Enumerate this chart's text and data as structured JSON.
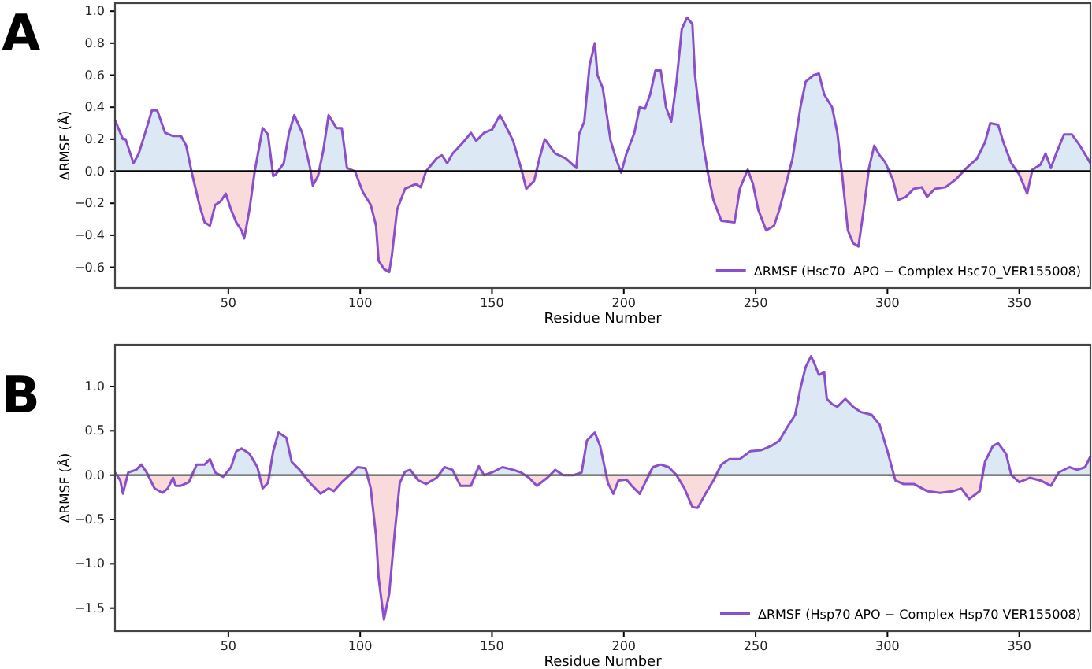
{
  "chart_data": [
    {
      "type": "line",
      "title": "A",
      "xlabel": "Residue Number",
      "ylabel": "ΔRMSF (Å)",
      "xlim": [
        7,
        377
      ],
      "xticks": [
        50,
        100,
        150,
        200,
        250,
        300,
        350
      ],
      "ylim": [
        -0.73,
        1.05
      ],
      "yticks": [
        {
          "value": -0.6,
          "label": "−0.6"
        },
        {
          "value": -0.4,
          "label": "−0.4"
        },
        {
          "value": -0.2,
          "label": "−0.2"
        },
        {
          "value": 0,
          "label": "0.0"
        },
        {
          "value": 0.2,
          "label": "0.2"
        },
        {
          "value": 0.4,
          "label": "0.4"
        },
        {
          "value": 0.6,
          "label": "0.6"
        },
        {
          "value": 0.8,
          "label": "0.8"
        },
        {
          "value": 1,
          "label": "1.0"
        }
      ],
      "legend": "bottom right",
      "grid": false,
      "x": [
        7,
        10,
        11,
        14,
        16,
        19,
        21,
        23,
        26,
        29,
        32,
        34,
        36,
        39,
        41,
        43,
        45,
        47,
        49,
        51,
        53,
        55,
        56,
        58,
        60,
        63,
        65,
        67,
        68,
        71,
        73,
        75,
        78,
        81,
        82,
        84,
        86,
        88,
        91,
        93,
        95,
        98,
        101,
        104,
        106,
        107,
        109,
        111,
        112,
        114,
        117,
        121,
        123,
        125,
        129,
        131,
        133,
        135,
        139,
        142,
        144,
        147,
        150,
        153,
        155,
        158,
        161,
        163,
        166,
        168,
        170,
        174,
        178,
        182,
        183,
        185,
        187,
        189,
        190,
        192,
        195,
        197,
        199,
        201,
        204,
        206,
        208,
        210,
        212,
        214,
        216,
        218,
        220,
        222,
        224,
        226,
        227,
        230,
        232,
        234,
        237,
        242,
        244,
        247,
        249,
        251,
        254,
        257,
        259,
        262,
        264,
        267,
        269,
        272,
        274,
        276,
        279,
        281,
        283,
        285,
        287,
        289,
        291,
        293,
        295,
        297,
        299,
        302,
        304,
        307,
        310,
        313,
        315,
        318,
        322,
        326,
        330,
        334,
        337,
        339,
        342,
        344,
        347,
        350,
        353,
        355,
        358,
        360,
        362,
        364,
        367,
        370,
        373,
        377
      ],
      "ref_lines": [
        {
          "axis": "y",
          "value": 0,
          "color": "#000000"
        }
      ],
      "series": [
        {
          "type": "area",
          "color": "#dce9f4",
          "values": [
            0.32,
            0.2,
            0.2,
            0.05,
            0.11,
            0.27,
            0.38,
            0.38,
            0.24,
            0.22,
            0.22,
            0.16,
            0,
            0,
            0,
            0,
            0,
            0,
            0,
            0,
            0,
            0,
            0,
            0,
            0,
            0.27,
            0.23,
            0,
            0,
            0.05,
            0.24,
            0.35,
            0.24,
            0.02,
            0,
            0,
            0.13,
            0.35,
            0.27,
            0.27,
            0.02,
            0,
            0,
            0,
            0,
            0,
            0,
            0,
            0,
            0,
            0,
            0,
            0,
            0,
            0.08,
            0.1,
            0.05,
            0.11,
            0.18,
            0.24,
            0.19,
            0.24,
            0.26,
            0.35,
            0.29,
            0.19,
            0.02,
            0,
            0,
            0.08,
            0.2,
            0.11,
            0.08,
            0.02,
            0.23,
            0.31,
            0.66,
            0.8,
            0.6,
            0.52,
            0.19,
            0.08,
            0,
            0.11,
            0.24,
            0.4,
            0.39,
            0.48,
            0.63,
            0.63,
            0.4,
            0.31,
            0.56,
            0.89,
            0.96,
            0.92,
            0.6,
            0.18,
            0,
            0,
            0,
            0,
            0,
            0.01,
            0,
            0,
            0,
            0,
            0,
            0,
            0.08,
            0.4,
            0.56,
            0.6,
            0.61,
            0.48,
            0.4,
            0.24,
            0,
            0,
            0,
            0,
            0,
            0.02,
            0.16,
            0.1,
            0.06,
            0,
            0,
            0,
            0,
            0,
            0,
            0,
            0,
            0,
            0.02,
            0.08,
            0.18,
            0.3,
            0.29,
            0.18,
            0.05,
            0,
            0,
            0.01,
            0.04,
            0.11,
            0.02,
            0.11,
            0.23,
            0.23,
            0.16,
            0.05
          ]
        },
        {
          "type": "area",
          "color": "#f9dbdc",
          "values": [
            0,
            0,
            0,
            0,
            0,
            0,
            0,
            0,
            0,
            0,
            0,
            0,
            0,
            -0.21,
            -0.32,
            -0.34,
            -0.21,
            -0.19,
            -0.14,
            -0.24,
            -0.32,
            -0.37,
            -0.42,
            -0.24,
            0,
            0,
            0,
            -0.03,
            -0.02,
            0,
            0,
            0,
            0,
            0,
            -0.09,
            -0.03,
            0,
            0,
            0,
            0,
            0,
            0,
            -0.13,
            -0.21,
            -0.34,
            -0.56,
            -0.61,
            -0.63,
            -0.53,
            -0.24,
            -0.11,
            -0.08,
            -0.1,
            0,
            0,
            0,
            0,
            0,
            0,
            0,
            0,
            0,
            0,
            0,
            0,
            0,
            0,
            -0.11,
            -0.06,
            0,
            0,
            0,
            0,
            0,
            0,
            0,
            0,
            0,
            0,
            0,
            0,
            0,
            -0.01,
            0,
            0,
            0,
            0,
            0,
            0,
            0,
            0,
            0,
            0,
            0,
            0,
            0,
            0,
            0,
            -0.02,
            -0.18,
            -0.31,
            -0.32,
            -0.11,
            0,
            -0.08,
            -0.24,
            -0.37,
            -0.34,
            -0.24,
            -0.05,
            0,
            0,
            0,
            0,
            0,
            0,
            0,
            0,
            -0.05,
            -0.37,
            -0.45,
            -0.47,
            -0.24,
            0,
            0,
            0,
            0,
            -0.05,
            -0.18,
            -0.16,
            -0.11,
            -0.1,
            -0.16,
            -0.11,
            -0.1,
            -0.05,
            0,
            0,
            0,
            0,
            0,
            0,
            0,
            -0.02,
            -0.14,
            0,
            0,
            0,
            0,
            0,
            0,
            0,
            0,
            0
          ]
        },
        {
          "name": "ΔRMSF (Hsc70  APO − Complex Hsc70_VER155008)",
          "color": "#8a4fc9",
          "values": [
            0.32,
            0.2,
            0.2,
            0.05,
            0.11,
            0.27,
            0.38,
            0.38,
            0.24,
            0.22,
            0.22,
            0.16,
            0,
            -0.21,
            -0.32,
            -0.34,
            -0.21,
            -0.19,
            -0.14,
            -0.24,
            -0.32,
            -0.37,
            -0.42,
            -0.24,
            0,
            0.27,
            0.23,
            -0.03,
            -0.02,
            0.05,
            0.24,
            0.35,
            0.24,
            0.02,
            -0.09,
            -0.03,
            0.13,
            0.35,
            0.27,
            0.27,
            0.02,
            0,
            -0.13,
            -0.21,
            -0.34,
            -0.56,
            -0.61,
            -0.63,
            -0.53,
            -0.24,
            -0.11,
            -0.08,
            -0.1,
            0,
            0.08,
            0.1,
            0.05,
            0.11,
            0.18,
            0.24,
            0.19,
            0.24,
            0.26,
            0.35,
            0.29,
            0.19,
            0.02,
            -0.11,
            -0.06,
            0.08,
            0.2,
            0.11,
            0.08,
            0.02,
            0.23,
            0.31,
            0.66,
            0.8,
            0.6,
            0.52,
            0.19,
            0.08,
            -0.01,
            0.11,
            0.24,
            0.4,
            0.39,
            0.48,
            0.63,
            0.63,
            0.4,
            0.31,
            0.56,
            0.89,
            0.96,
            0.92,
            0.6,
            0.18,
            -0.02,
            -0.18,
            -0.31,
            -0.32,
            -0.11,
            0.01,
            -0.08,
            -0.24,
            -0.37,
            -0.34,
            -0.24,
            -0.05,
            0.08,
            0.4,
            0.56,
            0.6,
            0.61,
            0.48,
            0.4,
            0.24,
            -0.05,
            -0.37,
            -0.45,
            -0.47,
            -0.24,
            0.02,
            0.16,
            0.1,
            0.06,
            -0.05,
            -0.18,
            -0.16,
            -0.11,
            -0.1,
            -0.16,
            -0.11,
            -0.1,
            -0.05,
            0.02,
            0.08,
            0.18,
            0.3,
            0.29,
            0.18,
            0.05,
            -0.02,
            -0.14,
            0.01,
            0.04,
            0.11,
            0.02,
            0.11,
            0.23,
            0.23,
            0.16,
            0.05
          ]
        }
      ]
    },
    {
      "type": "line",
      "title": "B",
      "xlabel": "Residue Number",
      "ylabel": "ΔRMSF (Å)",
      "xlim": [
        7,
        377
      ],
      "xticks": [
        50,
        100,
        150,
        200,
        250,
        300,
        350
      ],
      "ylim": [
        -1.76,
        1.47
      ],
      "yticks": [
        {
          "value": -1.5,
          "label": "−1.5"
        },
        {
          "value": -1,
          "label": "−1.0"
        },
        {
          "value": -0.5,
          "label": "−0.5"
        },
        {
          "value": 0,
          "label": "0.0"
        },
        {
          "value": 0.5,
          "label": "0.5"
        },
        {
          "value": 1,
          "label": "1.0"
        }
      ],
      "legend": "bottom right",
      "grid": false,
      "x": [
        7,
        9,
        10,
        12,
        15,
        17,
        19,
        22,
        25,
        27,
        29,
        30,
        32,
        35,
        38,
        41,
        43,
        45,
        48,
        51,
        53,
        55,
        58,
        61,
        63,
        65,
        67,
        69,
        72,
        74,
        77,
        81,
        85,
        88,
        90,
        93,
        96,
        99,
        102,
        104,
        106,
        107,
        109,
        111,
        113,
        115,
        117,
        119,
        122,
        125,
        129,
        132,
        135,
        138,
        142,
        145,
        147,
        150,
        154,
        158,
        161,
        164,
        167,
        171,
        174,
        177,
        181,
        184,
        186,
        189,
        191,
        194,
        196,
        198,
        201,
        203,
        206,
        208,
        211,
        214,
        217,
        220,
        223,
        226,
        228,
        231,
        234,
        237,
        240,
        244,
        248,
        252,
        256,
        259,
        262,
        265,
        267,
        269,
        271,
        272,
        274,
        276,
        277,
        279,
        281,
        284,
        287,
        290,
        294,
        297,
        300,
        303,
        306,
        310,
        315,
        320,
        325,
        328,
        331,
        335,
        337,
        340,
        342,
        345,
        347,
        350,
        354,
        358,
        362,
        365,
        369,
        372,
        375,
        377
      ],
      "ref_lines": [
        {
          "axis": "y",
          "value": 0,
          "color": "#555555"
        }
      ],
      "series": [
        {
          "type": "area",
          "color": "#dce9f4",
          "values": [
            0.03,
            0,
            0,
            0.03,
            0.06,
            0.12,
            0.03,
            0,
            0,
            0,
            0,
            0,
            0,
            0,
            0.12,
            0.12,
            0.18,
            0.03,
            0,
            0.09,
            0.27,
            0.3,
            0.24,
            0.09,
            0,
            0,
            0.27,
            0.48,
            0.42,
            0.15,
            0.06,
            0,
            0,
            0,
            0,
            0,
            0,
            0.09,
            0.08,
            0,
            0,
            0,
            0,
            0,
            0,
            0,
            0.04,
            0.06,
            0,
            0,
            0,
            0.09,
            0.06,
            0,
            0,
            0.1,
            0,
            0.03,
            0.09,
            0.06,
            0.03,
            0,
            0,
            0,
            0.06,
            0,
            0,
            0.03,
            0.39,
            0.48,
            0.33,
            0,
            0,
            0,
            0,
            0,
            0,
            0,
            0.09,
            0.12,
            0.09,
            0,
            0,
            0,
            0,
            0,
            0,
            0.12,
            0.18,
            0.18,
            0.27,
            0.28,
            0.33,
            0.39,
            0.54,
            0.68,
            0.98,
            1.22,
            1.34,
            1.28,
            1.13,
            1.16,
            0.86,
            0.8,
            0.77,
            0.86,
            0.77,
            0.71,
            0.68,
            0.57,
            0.27,
            0,
            0,
            0,
            0,
            0,
            0,
            0,
            0,
            0,
            0.15,
            0.33,
            0.36,
            0.24,
            0,
            0,
            0,
            0,
            0,
            0.03,
            0.09,
            0.06,
            0.09,
            0.21
          ]
        },
        {
          "type": "area",
          "color": "#f9dbdc",
          "values": [
            0,
            -0.06,
            -0.21,
            0,
            0,
            0,
            0,
            -0.15,
            -0.2,
            -0.15,
            -0.03,
            -0.12,
            -0.12,
            -0.08,
            0,
            0,
            0,
            0,
            -0.02,
            0,
            0,
            0,
            0,
            0,
            -0.15,
            -0.09,
            0,
            0,
            0,
            0,
            0,
            -0.09,
            -0.21,
            -0.15,
            -0.18,
            -0.08,
            0,
            0,
            0,
            -0.15,
            -0.68,
            -1.16,
            -1.63,
            -1.34,
            -0.68,
            -0.09,
            0,
            0,
            -0.06,
            -0.1,
            -0.03,
            0,
            0,
            -0.12,
            -0.12,
            0,
            0,
            0,
            0,
            0,
            0,
            -0.03,
            -0.12,
            -0.03,
            0,
            0,
            0,
            0,
            0,
            0,
            0,
            -0.09,
            -0.21,
            -0.06,
            -0.05,
            -0.12,
            -0.21,
            -0.09,
            0,
            0,
            0,
            0,
            -0.15,
            -0.36,
            -0.37,
            -0.21,
            -0.06,
            0,
            0,
            0,
            0,
            0,
            0,
            0,
            0,
            0,
            0,
            0,
            0,
            0,
            0,
            0,
            0,
            0,
            0,
            0,
            0,
            0,
            0,
            0,
            0,
            -0.06,
            -0.1,
            -0.1,
            -0.18,
            -0.2,
            -0.18,
            -0.15,
            -0.27,
            -0.18,
            0,
            0,
            0,
            0,
            0,
            -0.08,
            -0.03,
            -0.06,
            -0.12,
            0,
            0,
            0,
            0,
            0
          ]
        },
        {
          "name": "ΔRMSF (Hsp70 APO − Complex Hsp70 VER155008)",
          "color": "#8a4fc9",
          "values": [
            0.03,
            -0.06,
            -0.21,
            0.03,
            0.06,
            0.12,
            0.03,
            -0.15,
            -0.2,
            -0.15,
            -0.03,
            -0.12,
            -0.12,
            -0.08,
            0.12,
            0.12,
            0.18,
            0.03,
            -0.02,
            0.09,
            0.27,
            0.3,
            0.24,
            0.09,
            -0.15,
            -0.09,
            0.27,
            0.48,
            0.42,
            0.15,
            0.06,
            -0.09,
            -0.21,
            -0.15,
            -0.18,
            -0.08,
            0,
            0.09,
            0.08,
            -0.15,
            -0.68,
            -1.16,
            -1.63,
            -1.34,
            -0.68,
            -0.09,
            0.04,
            0.06,
            -0.06,
            -0.1,
            -0.03,
            0.09,
            0.06,
            -0.12,
            -0.12,
            0.1,
            0,
            0.03,
            0.09,
            0.06,
            0.03,
            -0.03,
            -0.12,
            -0.03,
            0.06,
            0,
            0,
            0.03,
            0.39,
            0.48,
            0.33,
            -0.09,
            -0.21,
            -0.06,
            -0.05,
            -0.12,
            -0.21,
            -0.09,
            0.09,
            0.12,
            0.09,
            0,
            -0.15,
            -0.36,
            -0.37,
            -0.21,
            -0.06,
            0.12,
            0.18,
            0.18,
            0.27,
            0.28,
            0.33,
            0.39,
            0.54,
            0.68,
            0.98,
            1.22,
            1.34,
            1.28,
            1.13,
            1.16,
            0.86,
            0.8,
            0.77,
            0.86,
            0.77,
            0.71,
            0.68,
            0.57,
            0.27,
            -0.06,
            -0.1,
            -0.1,
            -0.18,
            -0.2,
            -0.18,
            -0.15,
            -0.27,
            -0.18,
            0.15,
            0.33,
            0.36,
            0.24,
            0,
            -0.08,
            -0.03,
            -0.06,
            -0.12,
            0.03,
            0.09,
            0.06,
            0.09,
            0.21
          ]
        }
      ]
    }
  ]
}
